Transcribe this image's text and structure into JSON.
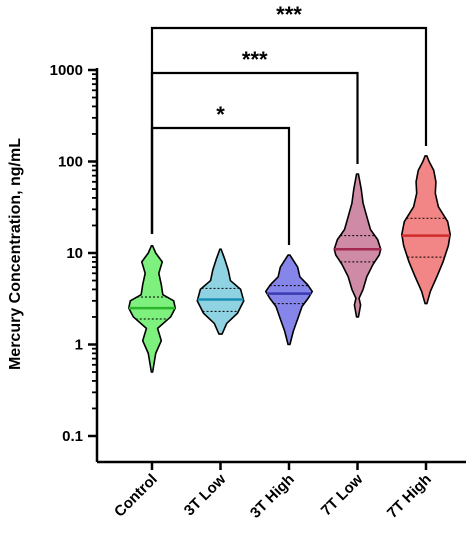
{
  "chart_data": {
    "type": "violin",
    "ylabel": "Mercury Concentration, ng/mL",
    "yscale": "log",
    "ylim": [
      0.1,
      1000
    ],
    "yticks": [
      {
        "value": 0.1,
        "label": "0.1"
      },
      {
        "value": 1,
        "label": "1"
      },
      {
        "value": 10,
        "label": "10"
      },
      {
        "value": 100,
        "label": "100"
      },
      {
        "value": 1000,
        "label": "1000"
      }
    ],
    "categories": [
      "Control",
      "3T Low",
      "3T High",
      "7T Low",
      "7T High"
    ],
    "groups": [
      {
        "name": "Control",
        "fill": "#7ef07e",
        "median_color": "#2bb52b",
        "min": 0.5,
        "max": 12,
        "q1": 1.9,
        "median": 2.5,
        "q3": 3.3,
        "density": [
          [
            0.5,
            0.02
          ],
          [
            0.8,
            0.12
          ],
          [
            1.1,
            0.3
          ],
          [
            1.5,
            0.18
          ],
          [
            2.0,
            0.6
          ],
          [
            2.5,
            0.75
          ],
          [
            3.0,
            0.7
          ],
          [
            3.5,
            0.35
          ],
          [
            4.5,
            0.3
          ],
          [
            6.0,
            0.22
          ],
          [
            8.0,
            0.33
          ],
          [
            10.0,
            0.12
          ],
          [
            12.0,
            0.02
          ]
        ]
      },
      {
        "name": "3T Low",
        "fill": "#8fd3e3",
        "median_color": "#1a8fb5",
        "min": 1.3,
        "max": 11,
        "q1": 2.3,
        "median": 3.1,
        "q3": 4.1,
        "density": [
          [
            1.3,
            0.05
          ],
          [
            1.7,
            0.2
          ],
          [
            2.2,
            0.55
          ],
          [
            3.0,
            0.75
          ],
          [
            4.0,
            0.65
          ],
          [
            5.0,
            0.32
          ],
          [
            6.5,
            0.25
          ],
          [
            8.5,
            0.14
          ],
          [
            11.0,
            0.02
          ]
        ]
      },
      {
        "name": "3T High",
        "fill": "#8585ea",
        "median_color": "#3b3bb0",
        "min": 1.0,
        "max": 9.5,
        "q1": 2.8,
        "median": 3.6,
        "q3": 4.4,
        "density": [
          [
            1.0,
            0.03
          ],
          [
            1.4,
            0.14
          ],
          [
            1.9,
            0.28
          ],
          [
            2.6,
            0.42
          ],
          [
            3.2,
            0.62
          ],
          [
            3.8,
            0.75
          ],
          [
            4.5,
            0.6
          ],
          [
            5.5,
            0.35
          ],
          [
            7.0,
            0.28
          ],
          [
            9.5,
            0.03
          ]
        ]
      },
      {
        "name": "7T Low",
        "fill": "#cf8aa6",
        "median_color": "#a3284f",
        "min": 2.0,
        "max": 73,
        "q1": 8.0,
        "median": 11.0,
        "q3": 15.5,
        "density": [
          [
            2.0,
            0.03
          ],
          [
            2.7,
            0.1
          ],
          [
            3.2,
            0.05
          ],
          [
            4.0,
            0.18
          ],
          [
            5.5,
            0.3
          ],
          [
            7.5,
            0.5
          ],
          [
            9.5,
            0.7
          ],
          [
            11.0,
            0.75
          ],
          [
            14.0,
            0.65
          ],
          [
            18.0,
            0.42
          ],
          [
            25.0,
            0.3
          ],
          [
            35.0,
            0.18
          ],
          [
            50.0,
            0.12
          ],
          [
            73.0,
            0.03
          ]
        ]
      },
      {
        "name": "7T High",
        "fill": "#f28585",
        "median_color": "#d12b2b",
        "min": 2.8,
        "max": 115,
        "q1": 9.0,
        "median": 15.5,
        "q3": 24.0,
        "density": [
          [
            2.8,
            0.03
          ],
          [
            3.8,
            0.14
          ],
          [
            5.5,
            0.35
          ],
          [
            8.0,
            0.55
          ],
          [
            12.0,
            0.72
          ],
          [
            16.0,
            0.78
          ],
          [
            22.0,
            0.7
          ],
          [
            32.0,
            0.4
          ],
          [
            45.0,
            0.3
          ],
          [
            60.0,
            0.32
          ],
          [
            80.0,
            0.25
          ],
          [
            100.0,
            0.1
          ],
          [
            115.0,
            0.03
          ]
        ]
      }
    ],
    "significance": [
      {
        "from": "Control",
        "to": "3T High",
        "label": "*"
      },
      {
        "from": "Control",
        "to": "7T Low",
        "label": "***"
      },
      {
        "from": "Control",
        "to": "7T High",
        "label": "***"
      }
    ]
  }
}
